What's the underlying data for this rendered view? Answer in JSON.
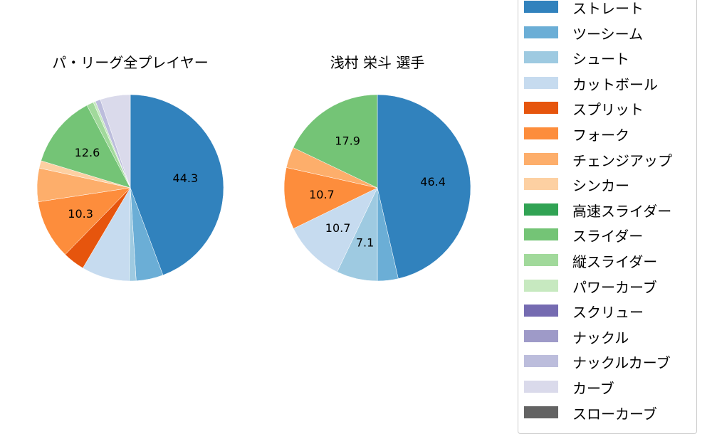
{
  "chart_data": [
    {
      "type": "pie",
      "title": "パ・リーグ全プレイヤー",
      "categories": [
        "ストレート",
        "ツーシーム",
        "シュート",
        "カットボール",
        "スプリット",
        "フォーク",
        "チェンジアップ",
        "シンカー",
        "スライダー",
        "縦スライダー",
        "パワーカーブ",
        "ナックルカーブ",
        "カーブ"
      ],
      "values": [
        44.3,
        4.7,
        1.2,
        8.3,
        3.8,
        10.3,
        5.8,
        1.3,
        12.6,
        1.2,
        0.4,
        0.9,
        5.2
      ],
      "labels_shown": [
        "44.3",
        "10.3",
        "12.6"
      ],
      "start_angle": 90,
      "direction": "clockwise"
    },
    {
      "type": "pie",
      "title": "浅村 栄斗  選手",
      "categories": [
        "ストレート",
        "ツーシーム",
        "シュート",
        "カットボール",
        "フォーク",
        "チェンジアップ",
        "スライダー"
      ],
      "values": [
        46.4,
        3.6,
        7.1,
        10.7,
        10.7,
        3.6,
        17.9
      ],
      "labels_shown": [
        "46.4",
        "7.1",
        "10.7",
        "10.7",
        "17.9"
      ],
      "start_angle": 90,
      "direction": "clockwise"
    }
  ],
  "titles": {
    "left": "パ・リーグ全プレイヤー",
    "right": "浅村 栄斗  選手"
  },
  "legend": {
    "items": [
      {
        "label": "ストレート",
        "color": "#3182bd"
      },
      {
        "label": "ツーシーム",
        "color": "#6baed6"
      },
      {
        "label": "シュート",
        "color": "#9ecae1"
      },
      {
        "label": "カットボール",
        "color": "#c6dbef"
      },
      {
        "label": "スプリット",
        "color": "#e6550d"
      },
      {
        "label": "フォーク",
        "color": "#fd8d3c"
      },
      {
        "label": "チェンジアップ",
        "color": "#fdae6b"
      },
      {
        "label": "シンカー",
        "color": "#fdd0a2"
      },
      {
        "label": "高速スライダー",
        "color": "#31a354"
      },
      {
        "label": "スライダー",
        "color": "#74c476"
      },
      {
        "label": "縦スライダー",
        "color": "#a1d99b"
      },
      {
        "label": "パワーカーブ",
        "color": "#c7e9c0"
      },
      {
        "label": "スクリュー",
        "color": "#756bb1"
      },
      {
        "label": "ナックル",
        "color": "#9e9ac8"
      },
      {
        "label": "ナックルカーブ",
        "color": "#bcbddc"
      },
      {
        "label": "カーブ",
        "color": "#dadaeb"
      },
      {
        "label": "スローカーブ",
        "color": "#636363"
      }
    ]
  }
}
